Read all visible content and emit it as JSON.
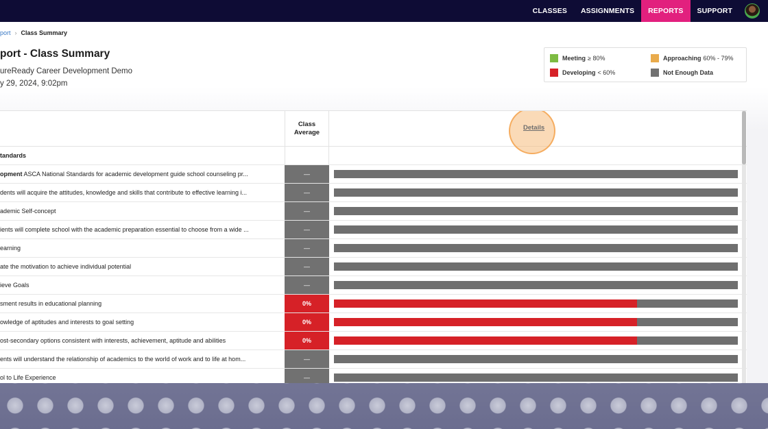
{
  "nav": {
    "items": [
      {
        "label": "CLASSES",
        "active": false
      },
      {
        "label": "ASSIGNMENTS",
        "active": false
      },
      {
        "label": "REPORTS",
        "active": true
      },
      {
        "label": "SUPPORT",
        "active": false
      }
    ],
    "avatar_icon": "user-avatar"
  },
  "breadcrumb": {
    "parent": "port",
    "separator": "›",
    "current": "Class Summary"
  },
  "header": {
    "title": "port - Class Summary",
    "class_name": "ureReady Career Development Demo",
    "date": "y 29, 2024, 9:02pm"
  },
  "legend": {
    "meeting": {
      "label": "Meeting",
      "range": "≥ 80%",
      "color": "#7dbb42"
    },
    "approaching": {
      "label": "Approaching",
      "range": "60% - 79%",
      "color": "#e9ab4c"
    },
    "developing": {
      "label": "Developing",
      "range": "< 60%",
      "color": "#d62127"
    },
    "not_enough": {
      "label": "Not Enough Data",
      "range": "",
      "color": "#717171"
    }
  },
  "table": {
    "col_avg": "Class Average",
    "col_details": "Details",
    "group_label": "tandards",
    "rows": [
      {
        "bold": "opment",
        "text": "ASCA National Standards for academic development guide school counseling pr...",
        "avg": "—",
        "status": "grey",
        "fill": 0
      },
      {
        "bold": "",
        "text": "dents will acquire the attitudes, knowledge and skills that contribute to effective learning i...",
        "avg": "—",
        "status": "grey",
        "fill": 0
      },
      {
        "bold": "",
        "text": "ademic Self-concept",
        "avg": "—",
        "status": "grey",
        "fill": 0
      },
      {
        "bold": "",
        "text": "ients will complete school with the academic preparation essential to choose from a wide ...",
        "avg": "—",
        "status": "grey",
        "fill": 0
      },
      {
        "bold": "",
        "text": "earning",
        "avg": "—",
        "status": "grey",
        "fill": 0
      },
      {
        "bold": "",
        "text": "ate the motivation to achieve individual potential",
        "avg": "—",
        "status": "grey",
        "fill": 0
      },
      {
        "bold": "",
        "text": "ieve Goals",
        "avg": "—",
        "status": "grey",
        "fill": 0
      },
      {
        "bold": "",
        "text": "sment results in educational planning",
        "avg": "0%",
        "status": "red",
        "fill": 0.75
      },
      {
        "bold": "",
        "text": "owledge of aptitudes and interests to goal setting",
        "avg": "0%",
        "status": "red",
        "fill": 0.75
      },
      {
        "bold": "",
        "text": "ost-secondary options consistent with interests, achievement, aptitude and abilities",
        "avg": "0%",
        "status": "red",
        "fill": 0.75
      },
      {
        "bold": "",
        "text": "ents will understand the relationship of academics to the world of work and to life at hom...",
        "avg": "—",
        "status": "grey",
        "fill": 0
      },
      {
        "bold": "",
        "text": "ol to Life Experience",
        "avg": "—",
        "status": "grey",
        "fill": 0
      }
    ]
  }
}
